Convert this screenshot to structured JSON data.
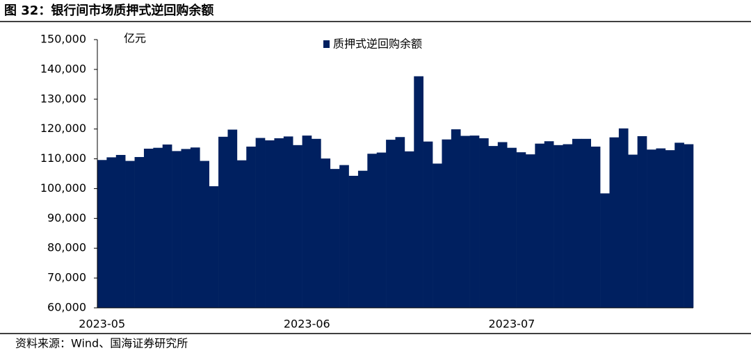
{
  "chart_data": {
    "type": "bar",
    "title": "图 32：银行间市场质押式逆回购余额",
    "y_unit": "亿元",
    "source": "资料来源：Wind、国海证券研究所",
    "categories": [
      "2023-05",
      null,
      null,
      null,
      null,
      null,
      null,
      null,
      null,
      null,
      null,
      null,
      null,
      null,
      null,
      null,
      null,
      null,
      null,
      null,
      null,
      null,
      "2023-06",
      null,
      null,
      null,
      null,
      null,
      null,
      null,
      null,
      null,
      null,
      null,
      null,
      null,
      null,
      null,
      null,
      null,
      null,
      null,
      null,
      null,
      "2023-07",
      null,
      null,
      null,
      null,
      null,
      null,
      null,
      null,
      null,
      null,
      null,
      null,
      null,
      null,
      null,
      null,
      null,
      null,
      null
    ],
    "series": [
      {
        "name": "质押式逆回购余额",
        "color": "#002060",
        "values": [
          109600,
          110500,
          111300,
          109300,
          110600,
          113400,
          113700,
          114800,
          112600,
          113300,
          113800,
          109300,
          100800,
          117400,
          119800,
          109500,
          114100,
          117000,
          116200,
          116900,
          117500,
          114600,
          117800,
          116700,
          110100,
          106600,
          107900,
          104300,
          106000,
          111700,
          112100,
          116400,
          117300,
          112500,
          137700,
          115800,
          108400,
          116500,
          119900,
          117700,
          117800,
          116900,
          114300,
          115600,
          113700,
          112200,
          111500,
          115100,
          115900,
          114600,
          114900,
          116700,
          116700,
          114100,
          98400,
          117200,
          120200,
          111400,
          117600,
          113100,
          113500,
          112900,
          115400,
          114900
        ]
      }
    ],
    "ylim": [
      60000,
      150000
    ],
    "yticks": [
      {
        "value": 60000,
        "label": "60,000"
      },
      {
        "value": 70000,
        "label": "70,000"
      },
      {
        "value": 80000,
        "label": "80,000"
      },
      {
        "value": 90000,
        "label": "90,000"
      },
      {
        "value": 100000,
        "label": "100,000"
      },
      {
        "value": 110000,
        "label": "110,000"
      },
      {
        "value": 120000,
        "label": "120,000"
      },
      {
        "value": 130000,
        "label": "130,000"
      },
      {
        "value": 140000,
        "label": "140,000"
      },
      {
        "value": 150000,
        "label": "150,000"
      }
    ],
    "grid": false
  }
}
